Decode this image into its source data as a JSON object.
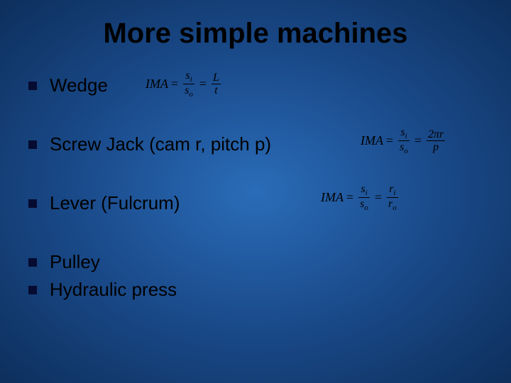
{
  "slide": {
    "title": "More simple machines",
    "background": {
      "type": "radial-gradient",
      "center_color": "#2a6cb8",
      "mid_color": "#1a4a8a",
      "edge_color": "#0d2f5c"
    },
    "title_style": {
      "color": "#000000",
      "fontsize": 40,
      "font_family": "Arial"
    },
    "bullet_style": {
      "shape": "square",
      "size": 12,
      "color": "#060b31"
    },
    "text_style": {
      "color": "#000000",
      "fontsize": 26,
      "font_family": "Verdana"
    },
    "items": [
      {
        "label": "Wedge",
        "formula_key": "wedge"
      },
      {
        "label": "Screw Jack (cam r, pitch p)",
        "formula_key": "screw"
      },
      {
        "label": "Lever (Fulcrum)",
        "formula_key": "lever"
      },
      {
        "label": "Pulley",
        "formula_key": null
      },
      {
        "label": "Hydraulic press",
        "formula_key": null
      }
    ],
    "formulas": {
      "wedge": {
        "lhs": "IMA",
        "terms": [
          {
            "num": "s",
            "num_sub": "i",
            "den": "s",
            "den_sub": "o"
          },
          {
            "num": "L",
            "den": "t"
          }
        ],
        "fontsize": 18,
        "color": "#000000",
        "font_family": "Times New Roman"
      },
      "screw": {
        "lhs": "IMA",
        "terms": [
          {
            "num": "s",
            "num_sub": "i",
            "den": "s",
            "den_sub": "o"
          },
          {
            "num": "2πr",
            "den": "p"
          }
        ],
        "fontsize": 18,
        "color": "#000000",
        "font_family": "Times New Roman"
      },
      "lever": {
        "lhs": "IMA",
        "terms": [
          {
            "num": "s",
            "num_sub": "i",
            "den": "s",
            "den_sub": "o"
          },
          {
            "num": "r",
            "num_sub": "i",
            "den": "r",
            "den_sub": "o"
          }
        ],
        "fontsize": 18,
        "color": "#000000",
        "font_family": "Times New Roman"
      }
    }
  }
}
